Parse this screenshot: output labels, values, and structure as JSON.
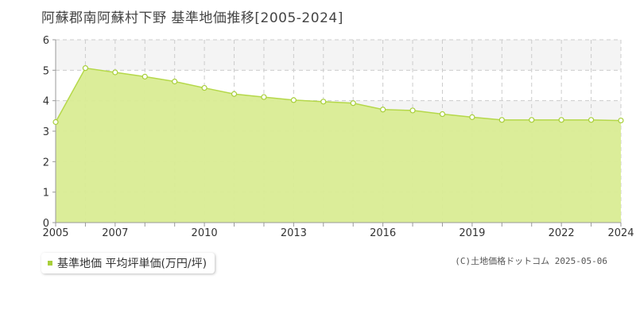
{
  "chart_data": {
    "type": "area",
    "title": "阿蘇郡南阿蘇村下野 基準地価推移[2005-2024]",
    "x": [
      2005,
      2006,
      2007,
      2008,
      2009,
      2010,
      2011,
      2012,
      2013,
      2014,
      2015,
      2016,
      2017,
      2018,
      2019,
      2020,
      2021,
      2022,
      2023,
      2024
    ],
    "series": [
      {
        "name": "基準地価 平均坪単価(万円/坪)",
        "values": [
          3.3,
          5.07,
          4.93,
          4.79,
          4.63,
          4.42,
          4.22,
          4.12,
          4.02,
          3.97,
          3.92,
          3.71,
          3.68,
          3.56,
          3.46,
          3.37,
          3.37,
          3.37,
          3.37,
          3.35
        ]
      }
    ],
    "x_tick_labels": [
      "2005",
      "2007",
      "2010",
      "2013",
      "2016",
      "2019",
      "2022",
      "2024"
    ],
    "y_tick_labels": [
      "0",
      "1",
      "2",
      "3",
      "4",
      "5",
      "6"
    ],
    "ylim": [
      0,
      6
    ],
    "xlim": [
      2005,
      2024
    ],
    "grid": true,
    "legend_position": "bottom-left",
    "colors": {
      "fill": "#d9ec93",
      "line": "#b5d84a",
      "marker_stroke": "#a8cf3a",
      "marker_fill": "#ffffff",
      "grid": "#cccccc",
      "axis": "#999999",
      "band": "#f4f4f4"
    }
  },
  "legend": {
    "label": "基準地価 平均坪単価(万円/坪)"
  },
  "copyright": "(C)土地価格ドットコム 2025-05-06"
}
